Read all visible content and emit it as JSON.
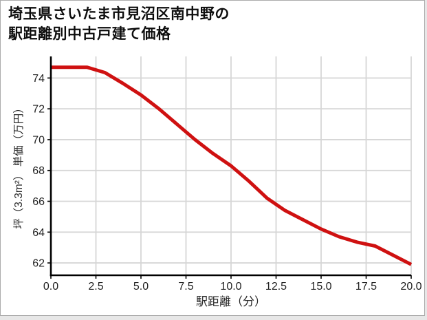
{
  "title": {
    "line1": "埼玉県さいたま市見沼区南中野の",
    "line2": "駅距離別中古戸建て価格"
  },
  "chart_data": {
    "type": "line",
    "title": "埼玉県さいたま市見沼区南中野の駅距離別中古戸建て価格",
    "xlabel": "駅距離（分）",
    "ylabel": "坪（3.3m²） 単価（万円）",
    "x": [
      0,
      1,
      2,
      3,
      4,
      5,
      6,
      7,
      8,
      9,
      10,
      11,
      12,
      13,
      14,
      15,
      16,
      17,
      18,
      19,
      20
    ],
    "values": [
      74.7,
      74.7,
      74.7,
      74.35,
      73.65,
      72.9,
      72.0,
      71.0,
      70.0,
      69.1,
      68.3,
      67.3,
      66.2,
      65.4,
      64.8,
      64.2,
      63.7,
      63.35,
      63.1,
      62.5,
      61.9
    ],
    "xlim": [
      0,
      20
    ],
    "ylim": [
      61.2,
      75.4
    ],
    "x_ticks": [
      0,
      2.5,
      5,
      7.5,
      10,
      12.5,
      15,
      17.5,
      20
    ],
    "x_tick_labels": [
      "0.0",
      "2.5",
      "5.0",
      "7.5",
      "10.0",
      "12.5",
      "15.0",
      "17.5",
      "20.0"
    ],
    "y_ticks": [
      62,
      64,
      66,
      68,
      70,
      72,
      74
    ],
    "y_tick_labels": [
      "62",
      "64",
      "66",
      "68",
      "70",
      "72",
      "74"
    ],
    "grid": true,
    "legend": "none",
    "line_color": "#cf1111",
    "grid_color": "#d6d6d6",
    "axis_color": "#000000",
    "tick_label_color": "#222222"
  }
}
